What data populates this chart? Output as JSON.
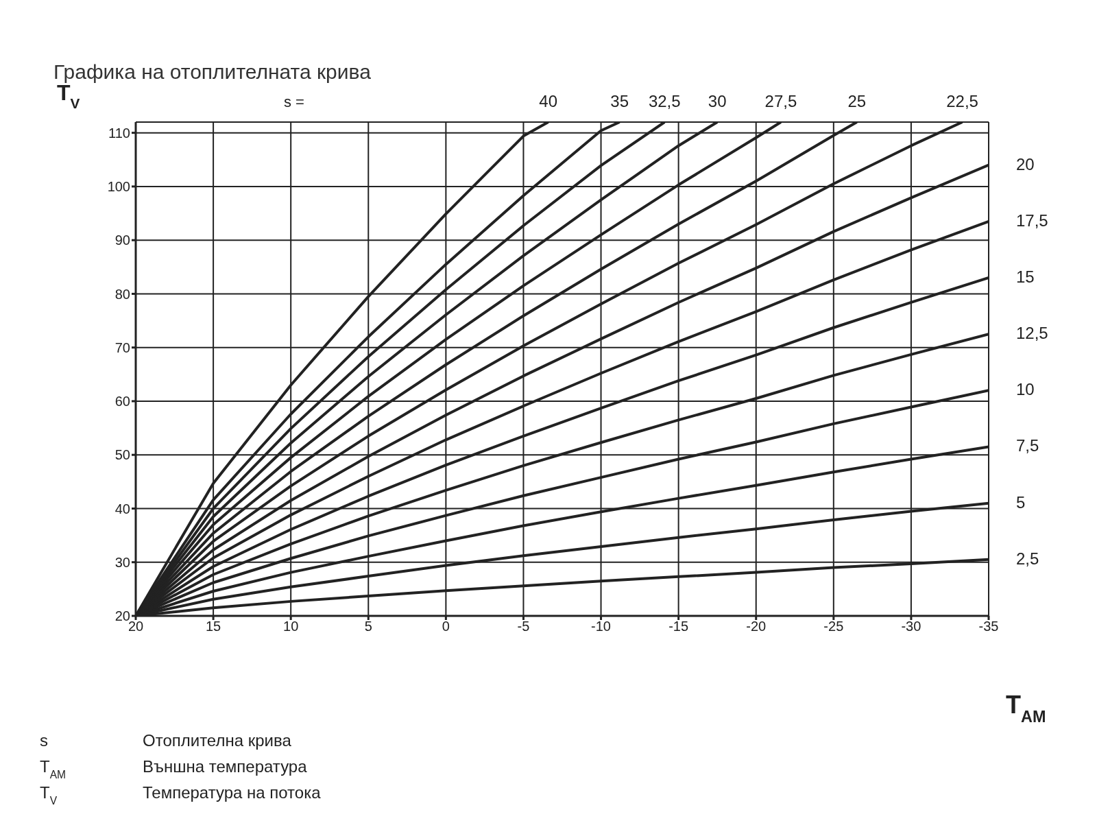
{
  "chart_data": {
    "type": "line",
    "title": "Графика на отоплителната крива",
    "xlabel": "T$_{AM}$",
    "ylabel": "T$_{V}$",
    "xlim": [
      20,
      -35
    ],
    "xticks": [
      20,
      15,
      10,
      5,
      0,
      -5,
      -10,
      -15,
      -20,
      -25,
      -30,
      -35
    ],
    "ylim": [
      20,
      112
    ],
    "yticks": [
      20,
      30,
      40,
      50,
      60,
      70,
      80,
      90,
      100,
      110
    ],
    "grid": true,
    "marker": "none",
    "line_style": "solid",
    "annotations": [
      "s =",
      "s Отоплителна крива",
      "T$_{AM}$ Външна температура",
      "T$_{V}$ Температура на потока"
    ],
    "series": [
      {
        "name": "40",
        "color": "#222222",
        "x": [
          20,
          15,
          10,
          5,
          0,
          -5,
          -6.6
        ],
        "values": [
          20,
          44.7,
          63.0,
          79.5,
          94.9,
          109.4,
          112
        ]
      },
      {
        "name": "35",
        "color": "#222222",
        "x": [
          20,
          15,
          10,
          5,
          0,
          -5,
          -10,
          -11.2
        ],
        "values": [
          20,
          41.6,
          57.6,
          72.0,
          85.5,
          98.3,
          110.4,
          112
        ]
      },
      {
        "name": "32,5",
        "color": "#222222",
        "x": [
          20,
          15,
          10,
          5,
          0,
          -5,
          -10,
          -14.1
        ],
        "values": [
          20,
          40.0,
          54.9,
          68.3,
          80.8,
          92.7,
          103.9,
          112
        ]
      },
      {
        "name": "30",
        "color": "#222222",
        "x": [
          20,
          15,
          10,
          5,
          0,
          -5,
          -10,
          -15,
          -17.5
        ],
        "values": [
          20,
          38.5,
          52.2,
          64.6,
          76.1,
          87.1,
          97.5,
          107.6,
          112
        ]
      },
      {
        "name": "27,5",
        "color": "#222222",
        "x": [
          20,
          15,
          10,
          5,
          0,
          -5,
          -10,
          -15,
          -20,
          -21.6
        ],
        "values": [
          20,
          37.0,
          49.5,
          60.9,
          71.5,
          81.5,
          91.0,
          100.3,
          109.1,
          112
        ]
      },
      {
        "name": "25",
        "color": "#222222",
        "x": [
          20,
          15,
          10,
          5,
          0,
          -5,
          -10,
          -15,
          -20,
          -25,
          -26.5
        ],
        "values": [
          20,
          35.4,
          46.9,
          57.2,
          66.8,
          75.9,
          84.6,
          93.0,
          101.0,
          109.5,
          112
        ]
      },
      {
        "name": "22,5",
        "color": "#222222",
        "x": [
          20,
          15,
          10,
          5,
          0,
          -5,
          -10,
          -15,
          -20,
          -25,
          -30,
          -33.3
        ],
        "values": [
          20,
          33.9,
          44.2,
          53.5,
          62.1,
          70.3,
          78.1,
          85.7,
          92.9,
          100.5,
          107.6,
          112
        ]
      },
      {
        "name": "20",
        "color": "#222222",
        "x": [
          20,
          15,
          10,
          5,
          0,
          -5,
          -10,
          -15,
          -20,
          -25,
          -30,
          -35
        ],
        "values": [
          20,
          32.3,
          41.5,
          49.7,
          57.4,
          64.7,
          71.6,
          78.4,
          84.8,
          91.6,
          97.9,
          104.0
        ]
      },
      {
        "name": "17,5",
        "color": "#222222",
        "x": [
          20,
          15,
          10,
          5,
          0,
          -5,
          -10,
          -15,
          -20,
          -25,
          -30,
          -35
        ],
        "values": [
          20,
          30.8,
          38.8,
          46.0,
          52.8,
          59.1,
          65.2,
          71.1,
          76.7,
          82.6,
          88.2,
          93.5
        ]
      },
      {
        "name": "15",
        "color": "#222222",
        "x": [
          20,
          15,
          10,
          5,
          0,
          -5,
          -10,
          -15,
          -20,
          -25,
          -30,
          -35
        ],
        "values": [
          20,
          29.2,
          36.1,
          42.3,
          48.1,
          53.5,
          58.7,
          63.8,
          68.6,
          73.7,
          78.4,
          83.0
        ]
      },
      {
        "name": "12,5",
        "color": "#222222",
        "x": [
          20,
          15,
          10,
          5,
          0,
          -5,
          -10,
          -15,
          -20,
          -25,
          -30,
          -35
        ],
        "values": [
          20,
          27.7,
          33.4,
          38.6,
          43.4,
          48.0,
          52.3,
          56.5,
          60.5,
          64.8,
          68.7,
          72.5
        ]
      },
      {
        "name": "10",
        "color": "#222222",
        "x": [
          20,
          15,
          10,
          5,
          0,
          -5,
          -10,
          -15,
          -20,
          -25,
          -30,
          -35
        ],
        "values": [
          20,
          26.2,
          30.7,
          34.9,
          38.7,
          42.4,
          45.8,
          49.2,
          52.4,
          55.8,
          58.9,
          62.0
        ]
      },
      {
        "name": "7,5",
        "color": "#222222",
        "x": [
          20,
          15,
          10,
          5,
          0,
          -5,
          -10,
          -15,
          -20,
          -25,
          -30,
          -35
        ],
        "values": [
          20,
          24.6,
          28.1,
          31.1,
          34.0,
          36.8,
          39.4,
          41.9,
          44.3,
          46.8,
          49.2,
          51.5
        ]
      },
      {
        "name": "5",
        "color": "#222222",
        "x": [
          20,
          15,
          10,
          5,
          0,
          -5,
          -10,
          -15,
          -20,
          -25,
          -30,
          -35
        ],
        "values": [
          20,
          23.1,
          25.4,
          27.4,
          29.4,
          31.2,
          32.9,
          34.6,
          36.2,
          37.9,
          39.5,
          41.0
        ]
      },
      {
        "name": "2,5",
        "color": "#222222",
        "x": [
          20,
          15,
          10,
          5,
          0,
          -5,
          -10,
          -15,
          -20,
          -25,
          -30,
          -35
        ],
        "values": [
          20,
          21.5,
          22.7,
          23.7,
          24.7,
          25.6,
          26.5,
          27.3,
          28.1,
          29.0,
          29.7,
          30.5
        ]
      }
    ]
  }
}
